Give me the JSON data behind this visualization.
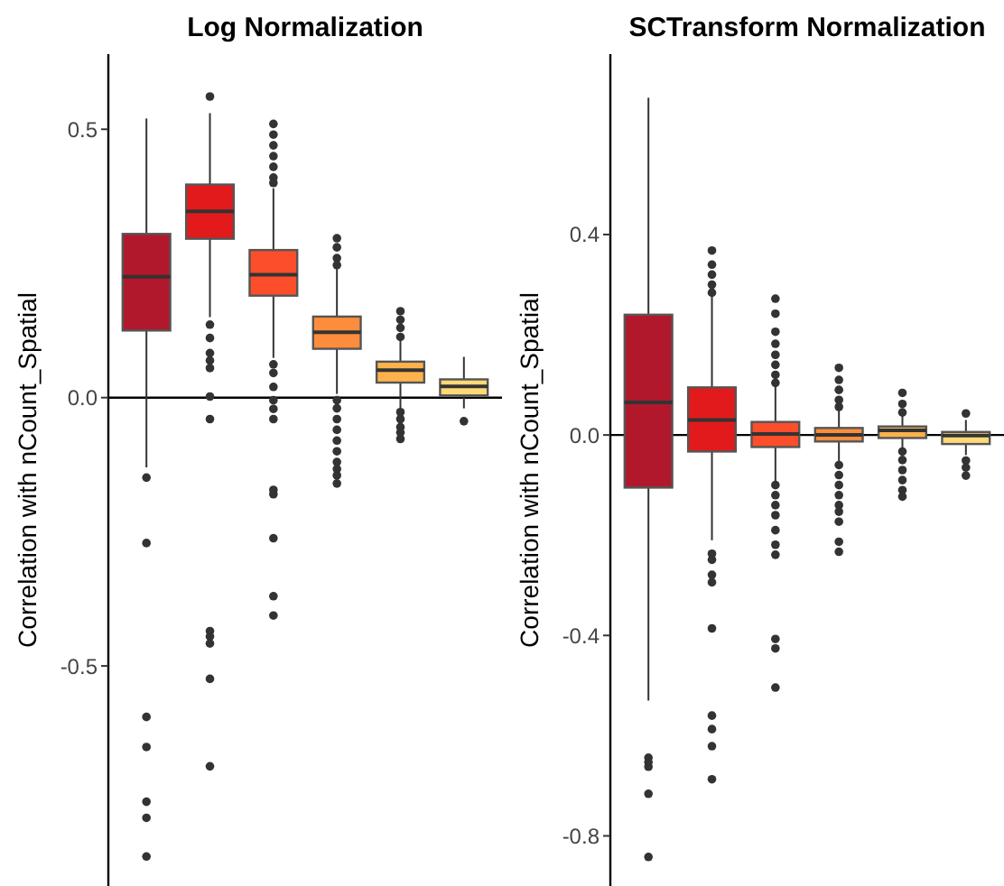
{
  "chart_data": [
    {
      "type": "box",
      "title": "Log Normalization",
      "ylabel": "Correlation with nCount_Spatial",
      "categories": [
        null,
        null,
        null,
        null,
        null,
        null
      ],
      "colors": [
        "#b2182b",
        "#e31a1c",
        "#fc4e2a",
        "#fd8d3c",
        "#feb24c",
        "#fed976"
      ],
      "ylim": [
        -0.91,
        0.64
      ],
      "yticks": [
        -0.5,
        {
          "value": 0,
          "label": "0.0"
        },
        0.5
      ],
      "ref_lines": [
        {
          "axis": "y",
          "value": 0
        }
      ],
      "boxes": [
        {
          "low": -0.13,
          "q1": 0.125,
          "median": 0.225,
          "q3": 0.305,
          "high": 0.52,
          "outliers": [
            -0.149,
            -0.271,
            -0.595,
            -0.651,
            -0.753,
            -0.783,
            -0.855
          ]
        },
        {
          "low": 0.15,
          "q1": 0.296,
          "median": 0.347,
          "q3": 0.397,
          "high": 0.53,
          "outliers": [
            0.561,
            0.136,
            0.111,
            0.083,
            0.069,
            0.055,
            0.002,
            -0.04,
            -0.435,
            -0.445,
            -0.458,
            -0.524,
            -0.687
          ]
        },
        {
          "low": 0.074,
          "q1": 0.19,
          "median": 0.229,
          "q3": 0.275,
          "high": 0.39,
          "outliers": [
            0.51,
            0.49,
            0.47,
            0.45,
            0.43,
            0.41,
            0.4,
            0.062,
            0.046,
            0.02,
            -0.005,
            -0.021,
            -0.04,
            -0.172,
            -0.18,
            -0.262,
            -0.37,
            -0.406
          ]
        },
        {
          "low": 0.007,
          "q1": 0.091,
          "median": 0.122,
          "q3": 0.151,
          "high": 0.245,
          "outliers": [
            0.297,
            0.28,
            0.26,
            0.247,
            -0.005,
            -0.02,
            -0.04,
            -0.06,
            -0.08,
            -0.1,
            -0.12,
            -0.133,
            -0.145,
            -0.16
          ]
        },
        {
          "low": -0.02,
          "q1": 0.028,
          "median": 0.051,
          "q3": 0.067,
          "high": 0.11,
          "outliers": [
            0.161,
            0.145,
            0.13,
            0.113,
            -0.027,
            -0.04,
            -0.055,
            -0.065,
            -0.077
          ]
        },
        {
          "low": -0.02,
          "q1": 0.004,
          "median": 0.021,
          "q3": 0.034,
          "high": 0.076,
          "outliers": [
            -0.044
          ]
        }
      ]
    },
    {
      "type": "box",
      "title": "SCTransform Normalization",
      "ylabel": "Correlation with nCount_Spatial",
      "categories": [
        null,
        null,
        null,
        null,
        null,
        null
      ],
      "colors": [
        "#b2182b",
        "#e31a1c",
        "#fc4e2a",
        "#fd8d3c",
        "#feb24c",
        "#fed976"
      ],
      "ylim": [
        -0.9,
        0.76
      ],
      "yticks": [
        -0.8,
        -0.4,
        {
          "value": 0,
          "label": "0.0"
        },
        0.4
      ],
      "ref_lines": [
        {
          "axis": "y",
          "value": 0
        }
      ],
      "boxes": [
        {
          "low": -0.53,
          "q1": -0.105,
          "median": 0.065,
          "q3": 0.24,
          "high": 0.673,
          "outliers": [
            -0.644,
            -0.653,
            -0.662,
            -0.716,
            -0.842
          ]
        },
        {
          "low": -0.21,
          "q1": -0.033,
          "median": 0.03,
          "q3": 0.095,
          "high": 0.28,
          "outliers": [
            0.368,
            0.34,
            0.32,
            0.3,
            0.284,
            -0.237,
            -0.249,
            -0.279,
            -0.294,
            -0.386,
            -0.56,
            -0.587,
            -0.621,
            -0.687
          ]
        },
        {
          "low": -0.093,
          "q1": -0.024,
          "median": 0.002,
          "q3": 0.026,
          "high": 0.1,
          "outliers": [
            0.272,
            0.242,
            0.206,
            0.182,
            0.16,
            0.14,
            0.12,
            0.104,
            -0.1,
            -0.12,
            -0.14,
            -0.16,
            -0.19,
            -0.219,
            -0.239,
            -0.407,
            -0.426,
            -0.504
          ]
        },
        {
          "low": -0.057,
          "q1": -0.013,
          "median": 0.0,
          "q3": 0.014,
          "high": 0.05,
          "outliers": [
            0.134,
            0.11,
            0.09,
            0.07,
            0.056,
            -0.06,
            -0.08,
            -0.1,
            -0.12,
            -0.14,
            -0.153,
            -0.173,
            -0.213,
            -0.233
          ]
        },
        {
          "low": -0.03,
          "q1": -0.006,
          "median": 0.009,
          "q3": 0.017,
          "high": 0.04,
          "outliers": [
            0.084,
            0.062,
            0.045,
            -0.033,
            -0.05,
            -0.07,
            -0.09,
            -0.11,
            -0.123
          ]
        },
        {
          "low": -0.04,
          "q1": -0.018,
          "median": -0.001,
          "q3": 0.006,
          "high": 0.03,
          "outliers": [
            0.043,
            -0.051,
            -0.065,
            -0.081
          ]
        }
      ]
    }
  ]
}
